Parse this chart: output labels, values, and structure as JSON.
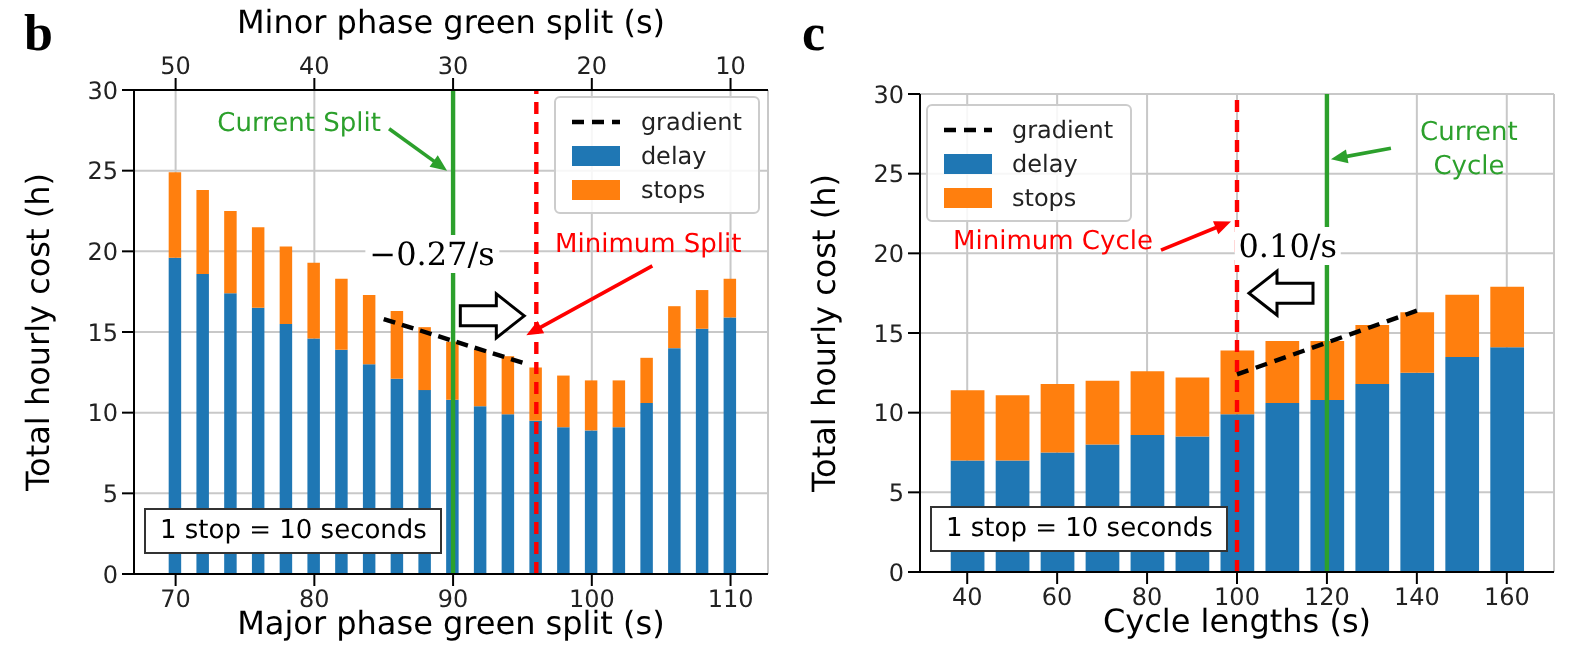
{
  "chart_data": [
    {
      "type": "bar",
      "title": "b",
      "xlabel": "Major phase green split (s)",
      "x2label": "Minor phase green split (s)",
      "ylabel": "Total hourly cost (h)",
      "x": [
        70,
        72,
        74,
        76,
        78,
        80,
        82,
        84,
        86,
        88,
        90,
        92,
        94,
        96,
        98,
        100,
        102,
        104,
        106,
        108,
        110
      ],
      "series": [
        {
          "name": "gradient",
          "type": "line",
          "line_style": "dashed",
          "color": "#000000",
          "x": [
            85,
            95
          ],
          "values": [
            15.8,
            13.1
          ]
        },
        {
          "name": "delay",
          "color": "#1f77b4",
          "values": [
            19.6,
            18.6,
            17.4,
            16.5,
            15.5,
            14.6,
            13.9,
            13.0,
            12.1,
            11.4,
            10.8,
            10.4,
            9.9,
            9.5,
            9.1,
            8.9,
            9.1,
            10.6,
            14.0,
            15.2,
            15.9
          ]
        },
        {
          "name": "stops",
          "color": "#ff7f0e",
          "values": [
            5.3,
            5.2,
            5.1,
            5.0,
            4.8,
            4.7,
            4.4,
            4.3,
            4.2,
            3.9,
            3.6,
            3.5,
            3.6,
            3.3,
            3.2,
            3.1,
            2.9,
            2.8,
            2.6,
            2.4,
            2.4
          ]
        }
      ],
      "stacked": true,
      "xlim": [
        67,
        112.7
      ],
      "xticks": [
        70,
        80,
        90,
        100,
        110
      ],
      "x2lim": [
        53,
        7.3
      ],
      "x2ticks": [
        50,
        40,
        30,
        20,
        10
      ],
      "ylim": [
        0,
        30
      ],
      "yticks": [
        0,
        5,
        10,
        15,
        20,
        25,
        30
      ],
      "grid": true,
      "legend": "top right",
      "ref_lines": [
        {
          "axis": "x",
          "value": 90,
          "label": "Current Split",
          "color": "#2ca02c",
          "line_style": "solid"
        },
        {
          "axis": "x",
          "value": 96,
          "label": "Minimum Split",
          "color": "#ff0000",
          "line_style": "dashed"
        }
      ],
      "annotations": [
        "−0.27/s",
        "1 stop = 10 seconds"
      ]
    },
    {
      "type": "bar",
      "title": "c",
      "xlabel": "Cycle lengths (s)",
      "ylabel": "Total hourly cost (h)",
      "x": [
        40,
        50,
        60,
        70,
        80,
        90,
        100,
        110,
        120,
        130,
        140,
        150,
        160
      ],
      "series": [
        {
          "name": "gradient",
          "type": "line",
          "line_style": "dashed",
          "color": "#000000",
          "x": [
            100,
            140
          ],
          "values": [
            12.4,
            16.4
          ]
        },
        {
          "name": "delay",
          "color": "#1f77b4",
          "values": [
            7.0,
            7.0,
            7.5,
            8.0,
            8.6,
            8.5,
            9.9,
            10.6,
            10.8,
            11.8,
            12.5,
            13.5,
            14.1
          ]
        },
        {
          "name": "stops",
          "color": "#ff7f0e",
          "values": [
            4.4,
            4.1,
            4.3,
            4.0,
            4.0,
            3.7,
            4.0,
            3.9,
            3.7,
            3.7,
            3.8,
            3.9,
            3.8
          ]
        }
      ],
      "stacked": true,
      "xlim": [
        29.5,
        170.5
      ],
      "xticks": [
        40,
        60,
        80,
        100,
        120,
        140,
        160
      ],
      "ylim": [
        0,
        30
      ],
      "yticks": [
        0,
        5,
        10,
        15,
        20,
        25,
        30
      ],
      "grid": true,
      "legend": "top left",
      "ref_lines": [
        {
          "axis": "x",
          "value": 100,
          "label": "Minimum Cycle",
          "color": "#ff0000",
          "line_style": "dashed"
        },
        {
          "axis": "x",
          "value": 120,
          "label": "Current Cycle",
          "color": "#2ca02c",
          "line_style": "solid"
        }
      ],
      "annotations": [
        "0.10/s",
        "1 stop = 10 seconds"
      ]
    }
  ]
}
